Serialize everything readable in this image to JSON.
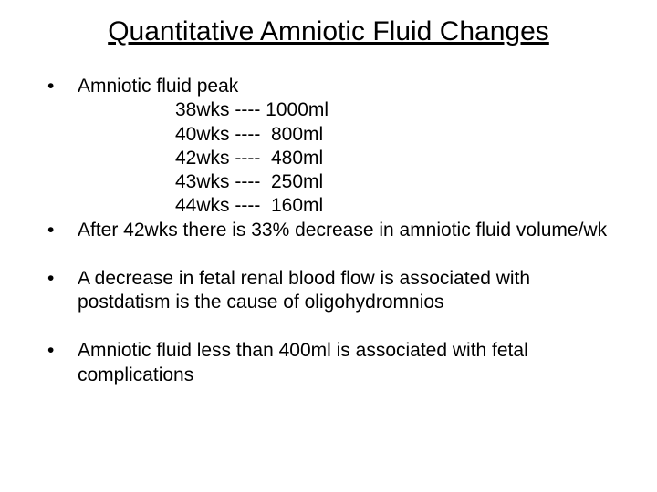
{
  "title": "Quantitative Amniotic Fluid Changes",
  "bullets": {
    "b1": "Amniotic fluid peak",
    "b2": "After 42wks there is 33% decrease in amniotic fluid volume/wk",
    "b3": "A decrease in fetal renal blood flow is associated with postdatism is the cause of oligohydromnios",
    "b4": "Amniotic fluid less than 400ml is associated with fetal complications"
  },
  "peak": {
    "r1": "38wks ---- 1000ml",
    "r2": "40wks ----  800ml",
    "r3": "42wks ----  480ml",
    "r4": "43wks ----  250ml",
    "r5": "44wks ----  160ml"
  },
  "style": {
    "title_fontsize": 30,
    "body_fontsize": 21,
    "text_color": "#000000",
    "background_color": "#ffffff",
    "font_family": "Arial"
  }
}
